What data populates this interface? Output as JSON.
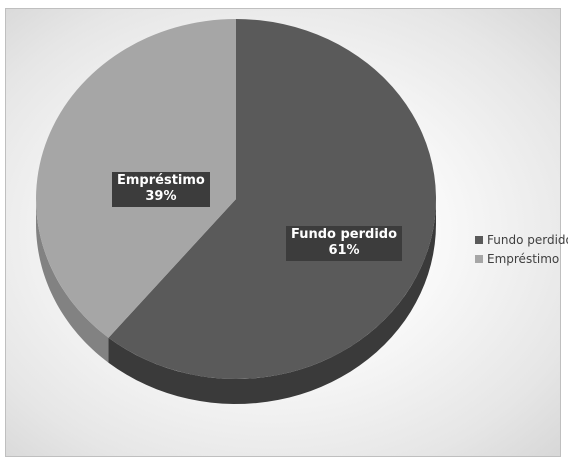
{
  "chart_data": {
    "type": "pie",
    "title": "",
    "categories": [
      "Fundo perdido",
      "Empréstimo"
    ],
    "values": [
      61,
      39
    ],
    "value_labels": [
      "61%",
      "39%"
    ],
    "colors": [
      "#5a5a5a",
      "#a6a6a6"
    ],
    "side_colors": [
      "#3a3a3a",
      "#828282"
    ],
    "style": "3d",
    "legend": {
      "position": "right",
      "entries": [
        {
          "label": "Fundo perdido",
          "color": "#5a5a5a"
        },
        {
          "label": "Empréstimo",
          "color": "#a6a6a6"
        }
      ]
    }
  }
}
